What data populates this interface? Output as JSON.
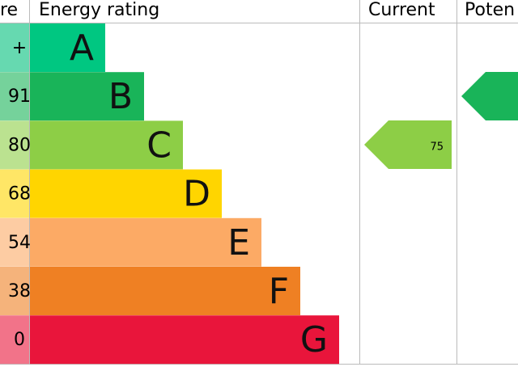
{
  "header": {
    "score": "re",
    "rating": "Energy rating",
    "current": "Current",
    "potential": "Poten"
  },
  "bands": [
    {
      "letter": "A",
      "range": "+",
      "color": "#00c781",
      "tint": "#66d9b0"
    },
    {
      "letter": "B",
      "range": "91",
      "color": "#19b459",
      "tint": "#75d29b"
    },
    {
      "letter": "C",
      "range": "80",
      "color": "#8dce46",
      "tint": "#bbe290"
    },
    {
      "letter": "D",
      "range": "68",
      "color": "#ffd500",
      "tint": "#ffe666"
    },
    {
      "letter": "E",
      "range": "54",
      "color": "#fcaa65",
      "tint": "#fdcca3"
    },
    {
      "letter": "F",
      "range": "38",
      "color": "#ef8023",
      "tint": "#f5b37b"
    },
    {
      "letter": "G",
      "range": "0",
      "color": "#e9153b",
      "tint": "#f27389"
    }
  ],
  "current": {
    "value": 75
  }
}
